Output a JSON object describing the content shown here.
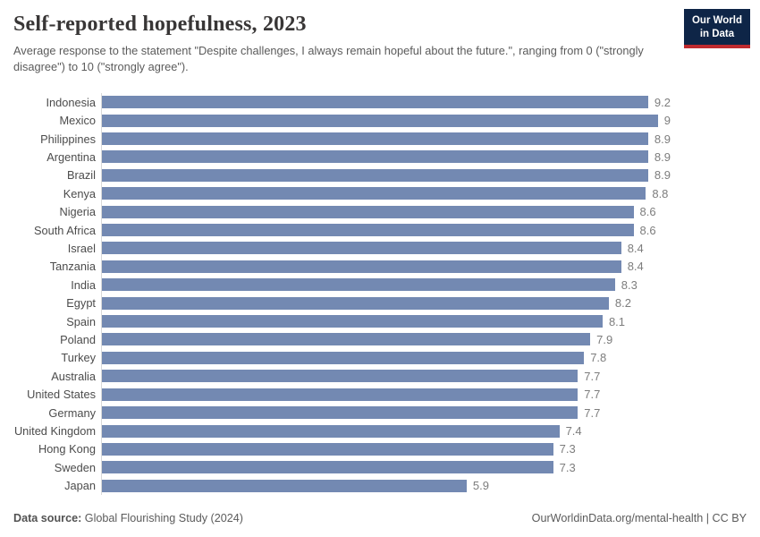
{
  "header": {
    "title": "Self-reported hopefulness, 2023",
    "subtitle": "Average response to the statement \"Despite challenges, I always remain hopeful about the future.\", ranging from 0 (\"strongly disagree\") to 10 (\"strongly agree\").",
    "logo": {
      "line1": "Our World",
      "line2": "in Data"
    }
  },
  "chart_data": {
    "type": "bar",
    "orientation": "horizontal",
    "title": "Self-reported hopefulness, 2023",
    "categories": [
      "Indonesia",
      "Mexico",
      "Philippines",
      "Argentina",
      "Brazil",
      "Kenya",
      "Nigeria",
      "South Africa",
      "Israel",
      "Tanzania",
      "India",
      "Egypt",
      "Spain",
      "Poland",
      "Turkey",
      "Australia",
      "United States",
      "Germany",
      "United Kingdom",
      "Hong Kong",
      "Sweden",
      "Japan"
    ],
    "values": [
      9.2,
      9,
      8.9,
      8.9,
      8.9,
      8.8,
      8.6,
      8.6,
      8.4,
      8.4,
      8.3,
      8.2,
      8.1,
      7.9,
      7.8,
      7.7,
      7.7,
      7.7,
      7.4,
      7.3,
      7.3,
      5.9
    ],
    "xlim": [
      0,
      9.2
    ],
    "grid": false,
    "legend": false,
    "bar_color": "#7389b2",
    "value_label_color": "#7d7d7d"
  },
  "footer": {
    "source_label": "Data source:",
    "source_text": " Global Flourishing Study (2024)",
    "attribution": "OurWorldinData.org/mental-health | CC BY"
  }
}
